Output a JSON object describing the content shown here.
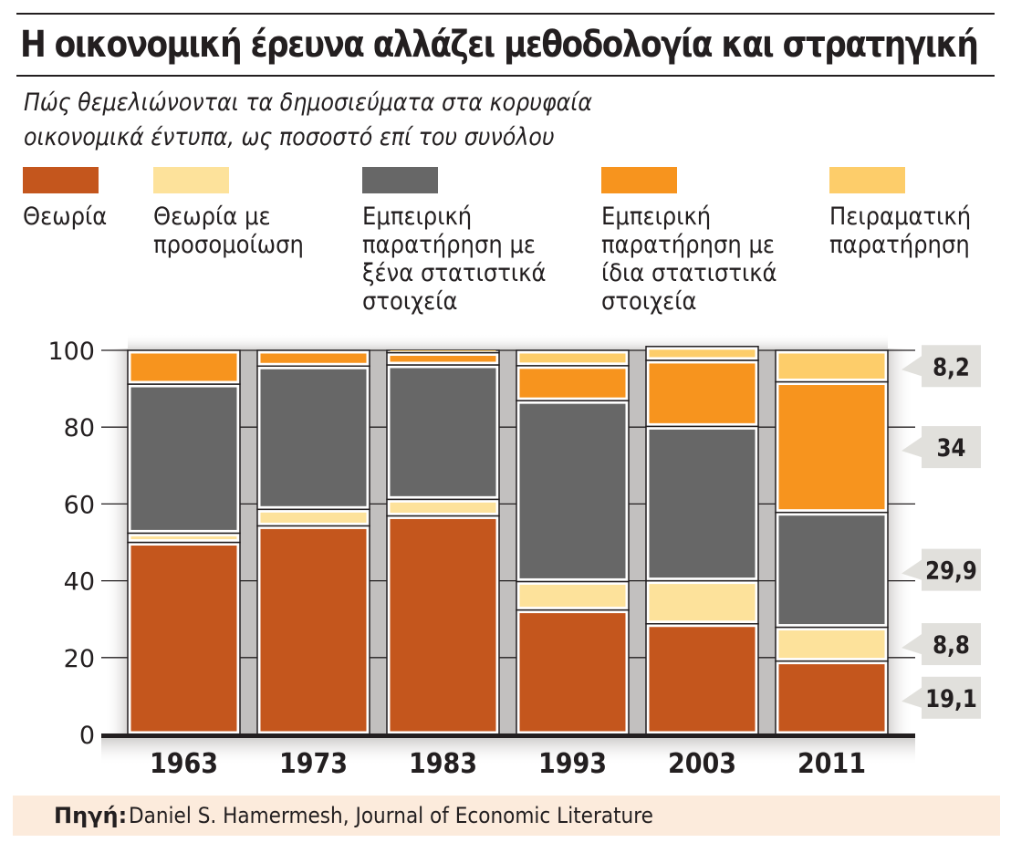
{
  "header": {
    "title": "Η οικονομική έρευνα αλλάζει μεθοδολογία και στρατηγική",
    "subtitle_line1": "Πώς θεμελιώνονται τα δημοσιεύματα στα κορυφαία",
    "subtitle_line2": "οικονομικά έντυπα, ως ποσοστό επί του συνόλου"
  },
  "legend": [
    {
      "label": "Θεωρία",
      "color": "#c4561d"
    },
    {
      "label": "Θεωρία με\nπροσομοίωση",
      "color": "#fde29b"
    },
    {
      "label": "Εμπειρική\nπαρατήρηση με\nξένα στατιστικά\nστοιχεία",
      "color": "#676767"
    },
    {
      "label": "Εμπειρική\nπαρατήρηση με\nίδια στατιστικά\nστοιχεία",
      "color": "#f7941e"
    },
    {
      "label": "Πειραματική\nπαρατήρηση",
      "color": "#fdcd6a"
    }
  ],
  "chart_data": {
    "type": "bar",
    "stacked": true,
    "title": "Η οικονομική έρευνα αλλάζει μεθοδολογία και στρατηγική",
    "subtitle": "Πώς θεμελιώνονται τα δημοσιεύματα στα κορυφαία οικονομικά έντυπα, ως ποσοστό επί του συνόλου",
    "xlabel": "",
    "ylabel": "",
    "ylim": [
      0,
      100
    ],
    "yticks": [
      0,
      20,
      40,
      60,
      80,
      100
    ],
    "grid": true,
    "categories": [
      "1963",
      "1973",
      "1983",
      "1993",
      "2003",
      "2011"
    ],
    "series": [
      {
        "name": "Θεωρία",
        "color": "#c4561d",
        "values": [
          50.0,
          54.3,
          56.9,
          32.4,
          28.8,
          19.1
        ]
      },
      {
        "name": "Θεωρία με προσομοίωση",
        "color": "#fde29b",
        "values": [
          2.4,
          4.3,
          4.3,
          7.4,
          11.2,
          8.8
        ]
      },
      {
        "name": "Εμπειρική παρατήρηση με ξένα στατιστικά στοιχεία",
        "color": "#676767",
        "values": [
          38.8,
          37.3,
          35.0,
          47.1,
          40.2,
          29.9
        ]
      },
      {
        "name": "Εμπειρική παρατήρηση με ίδια στατιστικά στοιχεία",
        "color": "#f7941e",
        "values": [
          8.8,
          4.1,
          3.2,
          9.1,
          17.2,
          34.0
        ]
      },
      {
        "name": "Πειραματική παρατήρηση",
        "color": "#fdcd6a",
        "values": [
          0.0,
          0.0,
          0.6,
          4.0,
          3.6,
          8.2
        ]
      }
    ],
    "annotations": [
      {
        "category": "2011",
        "series": "Πειραματική παρατήρηση",
        "text": "8,2"
      },
      {
        "category": "2011",
        "series": "Εμπειρική παρατήρηση με ίδια στατιστικά στοιχεία",
        "text": "34"
      },
      {
        "category": "2011",
        "series": "Εμπειρική παρατήρηση με ξένα στατιστικά στοιχεία",
        "text": "29,9"
      },
      {
        "category": "2011",
        "series": "Θεωρία με προσομοίωση",
        "text": "8,8"
      },
      {
        "category": "2011",
        "series": "Θεωρία",
        "text": "19,1"
      }
    ],
    "legend_position": "top"
  },
  "source": {
    "label": "Πηγή:",
    "text": "Daniel S. Hamermesh, Journal of Economic Literature"
  }
}
